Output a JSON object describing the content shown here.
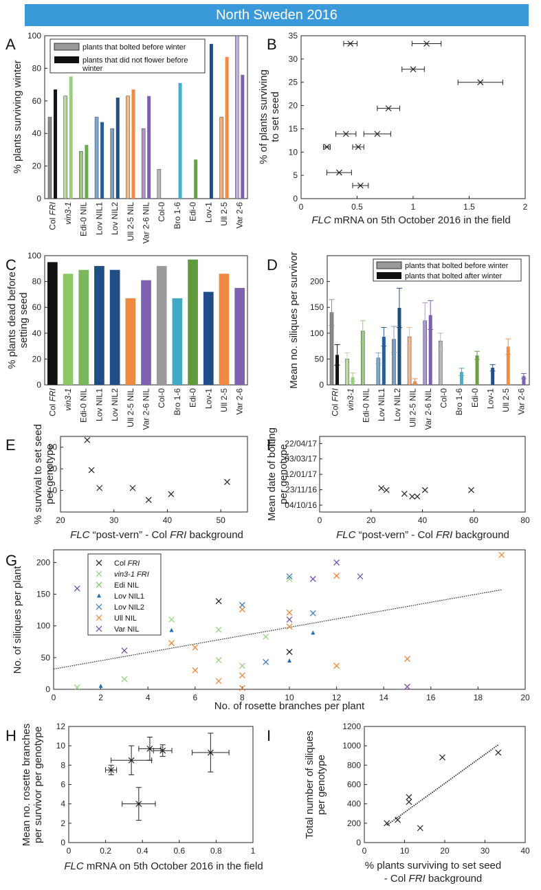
{
  "banner": "North Sweden 2016",
  "chart_data": [
    {
      "panel": "A",
      "type": "bar",
      "ylabel": "% plants surviving winter",
      "ylim": [
        0,
        100
      ],
      "yticks": [
        0,
        20,
        40,
        60,
        80,
        100
      ],
      "categories": [
        "Col FRI",
        "vin3-1",
        "Edi-0 NIL",
        "Lov NIL1",
        "Lov NIL2",
        "Ull 2-5 NIL",
        "Var 2-6 NIL",
        "Col-0",
        "Bro 1-6",
        "Edi-0",
        "Lov-1",
        "Ull 2-5",
        "Var 2-6"
      ],
      "series": [
        {
          "name": "plants that bolted before winter",
          "values": [
            50,
            63,
            29,
            50,
            43,
            63,
            43,
            18,
            null,
            null,
            null,
            50,
            100
          ]
        },
        {
          "name": "plants that did not flower before winter",
          "values": [
            67,
            75,
            33,
            47,
            62,
            67,
            63,
            null,
            71,
            24,
            95,
            87,
            76
          ]
        }
      ]
    },
    {
      "panel": "B",
      "type": "scatter",
      "xlabel": "FLC mRNA on 5th October 2016 in the field",
      "ylabel": "% of plants surviving to set seed",
      "xlim": [
        0,
        2
      ],
      "ylim": [
        0,
        35
      ],
      "xticks": [
        0,
        0.5,
        1,
        1.5,
        2
      ],
      "yticks": [
        0,
        5,
        10,
        15,
        20,
        25,
        30,
        35
      ],
      "points": [
        {
          "x": 0.44,
          "y": 33.3,
          "xerr": 0.06
        },
        {
          "x": 1.12,
          "y": 33.3,
          "xerr": 0.13
        },
        {
          "x": 1.0,
          "y": 27.8,
          "xerr": 0.1
        },
        {
          "x": 1.6,
          "y": 25,
          "xerr": 0.2
        },
        {
          "x": 0.78,
          "y": 19.4,
          "xerr": 0.1
        },
        {
          "x": 0.68,
          "y": 13.9,
          "xerr": 0.12
        },
        {
          "x": 0.4,
          "y": 13.9,
          "xerr": 0.09
        },
        {
          "x": 0.51,
          "y": 11.1,
          "xerr": 0.05
        },
        {
          "x": 0.23,
          "y": 11.1,
          "xerr": 0.03
        },
        {
          "x": 0.34,
          "y": 5.6,
          "xerr": 0.11
        },
        {
          "x": 0.53,
          "y": 2.8,
          "xerr": 0.07
        }
      ]
    },
    {
      "panel": "C",
      "type": "bar",
      "ylabel": "% plants dead before setting seed",
      "ylim": [
        0,
        100
      ],
      "yticks": [
        0,
        20,
        40,
        60,
        80,
        100
      ],
      "categories": [
        "Col FRI",
        "vin3-1",
        "Edi-0 NIL",
        "Lov NIL1",
        "Lov NIL2",
        "Ull 2-5 NIL",
        "Var 2-6 NIL",
        "Col-0",
        "Bro 1-6",
        "Edi-0",
        "Lov-1",
        "Ull 2-5",
        "Var 2-6"
      ],
      "values": [
        95,
        86,
        89,
        92,
        89,
        67,
        81,
        92,
        67,
        97,
        72,
        86,
        75
      ]
    },
    {
      "panel": "D",
      "type": "bar",
      "ylabel": "Mean no. siliques per survivor",
      "ylim": [
        0,
        250
      ],
      "yticks": [
        0,
        50,
        100,
        150,
        200
      ],
      "categories": [
        "Col FRI",
        "vin3-1",
        "Edi-0 NIL",
        "Lov NIL1",
        "Lov NIL2",
        "Ull 2-5 NIL",
        "Var 2-6 NIL",
        "Col-0",
        "Bro 1-6",
        "Edi-0",
        "Lov-1",
        "Ull 2-5",
        "Var 2-6"
      ],
      "series": [
        {
          "name": "plants that bolted before winter",
          "values": [
            140,
            50,
            104,
            52,
            88,
            93,
            124,
            85,
            null,
            null,
            null,
            null,
            null
          ],
          "err": [
            25,
            12,
            20,
            10,
            25,
            18,
            35,
            15,
            null,
            null,
            null,
            null,
            null
          ]
        },
        {
          "name": "plants that bolted after winter",
          "values": [
            58,
            15,
            null,
            93,
            149,
            7,
            135,
            null,
            25,
            57,
            33,
            74,
            17
          ],
          "err": [
            20,
            8,
            null,
            18,
            38,
            5,
            28,
            null,
            7,
            8,
            6,
            15,
            5
          ]
        }
      ]
    },
    {
      "panel": "E",
      "type": "scatter",
      "xlabel": "FLC “post-vern” - Col FRI background",
      "ylabel": "% survival to set seed per genotype",
      "xlim": [
        20,
        55
      ],
      "ylim": [
        0,
        35
      ],
      "xticks": [
        20,
        30,
        40,
        50
      ],
      "yticks": [
        10,
        20,
        30
      ],
      "points": [
        {
          "x": 25,
          "y": 33.3
        },
        {
          "x": 25.8,
          "y": 19.4
        },
        {
          "x": 27.3,
          "y": 11.1
        },
        {
          "x": 33.5,
          "y": 11.1
        },
        {
          "x": 36.5,
          "y": 5.6
        },
        {
          "x": 40.7,
          "y": 8.3
        },
        {
          "x": 51.2,
          "y": 13.9
        }
      ]
    },
    {
      "panel": "F",
      "type": "scatter",
      "xlabel": "FLC “post-vern” - Col FRI background",
      "ylabel": "Mean date of bolting per genotype",
      "xlim": [
        0,
        80
      ],
      "xticks": [
        0,
        20,
        40,
        60,
        80
      ],
      "yticks": [
        "04/10/16",
        "23/11/16",
        "12/01/17",
        "03/03/17",
        "22/04/17"
      ],
      "points": [
        {
          "x": 24,
          "y": "28/11/16"
        },
        {
          "x": 26,
          "y": "22/11/16"
        },
        {
          "x": 33,
          "y": "10/11/16"
        },
        {
          "x": 36,
          "y": "01/11/16"
        },
        {
          "x": 38,
          "y": "01/11/16"
        },
        {
          "x": 41,
          "y": "22/11/16"
        },
        {
          "x": 59,
          "y": "22/11/16"
        }
      ]
    },
    {
      "panel": "G",
      "type": "scatter",
      "xlabel": "No. of rosette branches per plant",
      "ylabel": "No. of siliques per plant",
      "xlim": [
        0,
        20
      ],
      "ylim": [
        0,
        220
      ],
      "xticks": [
        0,
        2,
        4,
        6,
        8,
        10,
        12,
        14,
        16,
        18,
        20
      ],
      "yticks": [
        0,
        50,
        100,
        150,
        200
      ],
      "trendline": {
        "x": [
          0,
          19
        ],
        "y": [
          32,
          157
        ]
      },
      "series": [
        {
          "name": "Col FRI",
          "points": [
            [
              7,
              139
            ],
            [
              10,
              59
            ]
          ]
        },
        {
          "name": "vin3-1 FRI",
          "points": [
            [
              1,
              3
            ],
            [
              3,
              16
            ],
            [
              5,
              110
            ],
            [
              7,
              94
            ],
            [
              7,
              46
            ],
            [
              8,
              37
            ],
            [
              9,
              83
            ],
            [
              10,
              174
            ]
          ]
        },
        {
          "name": "Edi NIL",
          "points": []
        },
        {
          "name": "Lov NIL1",
          "points": [
            [
              2,
              5
            ],
            [
              5,
              93
            ],
            [
              10,
              45
            ],
            [
              11,
              89
            ]
          ]
        },
        {
          "name": "Lov NIL2",
          "points": [
            [
              8,
              133
            ],
            [
              9,
              43
            ],
            [
              10,
              178
            ],
            [
              11,
              120
            ]
          ]
        },
        {
          "name": "Ull NIL",
          "points": [
            [
              5,
              73
            ],
            [
              6,
              66
            ],
            [
              6,
              30
            ],
            [
              7,
              13
            ],
            [
              8,
              126
            ],
            [
              8,
              22
            ],
            [
              8,
              2
            ],
            [
              10,
              121
            ],
            [
              10,
              99
            ],
            [
              12,
              179
            ],
            [
              12,
              37
            ],
            [
              15,
              48
            ],
            [
              19,
              212
            ]
          ]
        },
        {
          "name": "Var NIL",
          "points": [
            [
              1,
              159
            ],
            [
              3,
              61
            ],
            [
              10,
              110
            ],
            [
              11,
              174
            ],
            [
              12,
              200
            ],
            [
              13,
              178
            ],
            [
              15,
              4
            ]
          ]
        }
      ]
    },
    {
      "panel": "H",
      "type": "scatter",
      "xlabel": "FLC mRNA on 5th October 2016 in the field",
      "ylabel": "Mean no. rosette branches per survivor per genotype",
      "xlim": [
        0,
        1
      ],
      "ylim": [
        0,
        12
      ],
      "xticks": [
        0,
        0.2,
        0.4,
        0.6,
        0.8,
        1
      ],
      "yticks": [
        0,
        2,
        4,
        6,
        8,
        10,
        12
      ],
      "points": [
        {
          "x": 0.23,
          "y": 7.5,
          "xerr": 0.03,
          "yerr": 0.5
        },
        {
          "x": 0.34,
          "y": 8.5,
          "xerr": 0.11,
          "yerr": 1.5
        },
        {
          "x": 0.38,
          "y": 4,
          "xerr": 0.09,
          "yerr": 1.7
        },
        {
          "x": 0.44,
          "y": 9.7,
          "xerr": 0.06,
          "yerr": 1.2
        },
        {
          "x": 0.51,
          "y": 9.5,
          "xerr": 0.05,
          "yerr": 0.6
        },
        {
          "x": 0.77,
          "y": 9.3,
          "xerr": 0.1,
          "yerr": 2
        }
      ]
    },
    {
      "panel": "I",
      "type": "scatter",
      "xlabel": "% plants surviving to set seed - Col FRI background",
      "ylabel": "Total number of siliques per genotype",
      "xlim": [
        0,
        40
      ],
      "ylim": [
        0,
        1200
      ],
      "xticks": [
        0,
        10,
        20,
        30,
        40
      ],
      "yticks": [
        0,
        200,
        400,
        600,
        800,
        1000,
        1200
      ],
      "trendline": {
        "x": [
          5.6,
          33.3
        ],
        "y": [
          180,
          1010
        ]
      },
      "points": [
        {
          "x": 5.6,
          "y": 200
        },
        {
          "x": 8.3,
          "y": 235
        },
        {
          "x": 11.1,
          "y": 470
        },
        {
          "x": 11.1,
          "y": 420
        },
        {
          "x": 13.9,
          "y": 150
        },
        {
          "x": 19.4,
          "y": 880
        },
        {
          "x": 33.3,
          "y": 930
        }
      ]
    }
  ]
}
